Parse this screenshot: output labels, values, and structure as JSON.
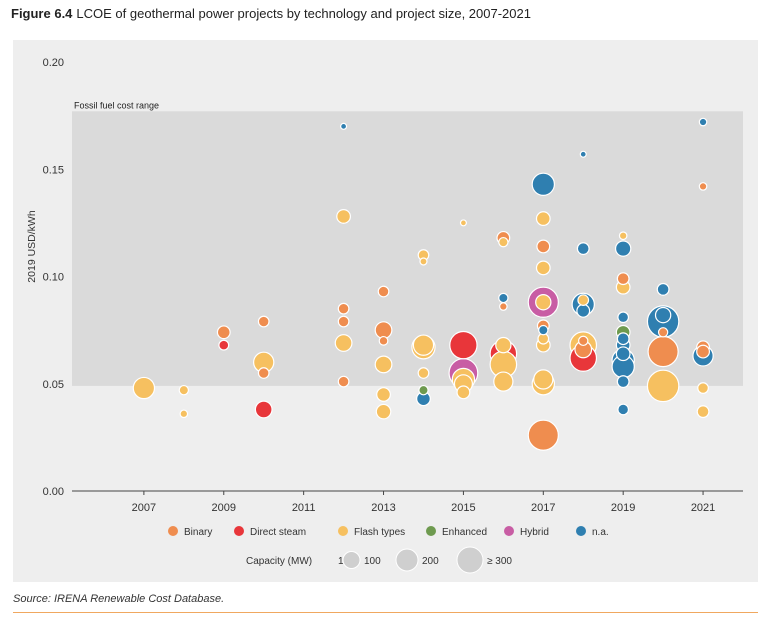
{
  "figure": {
    "label": "Figure 6.4",
    "title": "LCOE of geothermal power projects by technology and project size, 2007-2021",
    "source": "Source: IRENA Renewable Cost Database."
  },
  "colors": {
    "Binary": "#ef8d4f",
    "Direct steam": "#e8363a",
    "Flash types": "#f6c060",
    "Enhanced": "#6e9a4f",
    "Hybrid": "#c85da4",
    "n.a.": "#2f7fb0",
    "band": "#dadada",
    "panel": "#eeeeee"
  },
  "chart_data": {
    "type": "scatter",
    "title": "LCOE of geothermal power projects by technology and project size, 2007-2021",
    "xlabel": "",
    "ylabel": "2019 USD/kWh",
    "xlim": [
      2005.2,
      2022
    ],
    "ylim": [
      0,
      0.2
    ],
    "y_ticks": [
      "0.00",
      "0.05",
      "0.10",
      "0.15",
      "0.20"
    ],
    "x_ticks": [
      "2007",
      "2009",
      "2011",
      "2013",
      "2015",
      "2017",
      "2019",
      "2021"
    ],
    "band": {
      "label": "Fossil fuel cost range",
      "y0": 0.049,
      "y1": 0.177
    },
    "legend_technology": [
      "Binary",
      "Direct steam",
      "Flash types",
      "Enhanced",
      "Hybrid",
      "n.a."
    ],
    "legend_capacity": {
      "title": "Capacity (MW)",
      "items": [
        {
          "label": "1",
          "mw": 1
        },
        {
          "label": "100",
          "mw": 100
        },
        {
          "label": "200",
          "mw": 200
        },
        {
          "label": "≥ 300",
          "mw": 300
        }
      ]
    },
    "points": [
      {
        "x": 2007,
        "y": 0.048,
        "tech": "Flash types",
        "mw": 90
      },
      {
        "x": 2008,
        "y": 0.047,
        "tech": "Flash types",
        "mw": 10
      },
      {
        "x": 2008,
        "y": 0.036,
        "tech": "Flash types",
        "mw": 5
      },
      {
        "x": 2009,
        "y": 0.074,
        "tech": "Binary",
        "mw": 25
      },
      {
        "x": 2009,
        "y": 0.068,
        "tech": "Direct steam",
        "mw": 12
      },
      {
        "x": 2010,
        "y": 0.079,
        "tech": "Binary",
        "mw": 15
      },
      {
        "x": 2010,
        "y": 0.06,
        "tech": "Flash types",
        "mw": 80
      },
      {
        "x": 2010,
        "y": 0.055,
        "tech": "Binary",
        "mw": 15
      },
      {
        "x": 2010,
        "y": 0.038,
        "tech": "Direct steam",
        "mw": 50
      },
      {
        "x": 2012,
        "y": 0.17,
        "tech": "n.a.",
        "mw": 2
      },
      {
        "x": 2012,
        "y": 0.128,
        "tech": "Flash types",
        "mw": 30
      },
      {
        "x": 2012,
        "y": 0.085,
        "tech": "Binary",
        "mw": 15
      },
      {
        "x": 2012,
        "y": 0.079,
        "tech": "Binary",
        "mw": 15
      },
      {
        "x": 2012,
        "y": 0.069,
        "tech": "Flash types",
        "mw": 50
      },
      {
        "x": 2012,
        "y": 0.051,
        "tech": "Binary",
        "mw": 15
      },
      {
        "x": 2013,
        "y": 0.093,
        "tech": "Binary",
        "mw": 15
      },
      {
        "x": 2013,
        "y": 0.075,
        "tech": "Binary",
        "mw": 50
      },
      {
        "x": 2013,
        "y": 0.07,
        "tech": "Binary",
        "mw": 8
      },
      {
        "x": 2013,
        "y": 0.059,
        "tech": "Flash types",
        "mw": 50
      },
      {
        "x": 2013,
        "y": 0.045,
        "tech": "Flash types",
        "mw": 30
      },
      {
        "x": 2013,
        "y": 0.037,
        "tech": "Flash types",
        "mw": 35
      },
      {
        "x": 2014,
        "y": 0.11,
        "tech": "Flash types",
        "mw": 15
      },
      {
        "x": 2014,
        "y": 0.107,
        "tech": "Flash types",
        "mw": 4
      },
      {
        "x": 2014,
        "y": 0.067,
        "tech": "Flash types",
        "mw": 110
      },
      {
        "x": 2014,
        "y": 0.068,
        "tech": "Flash types",
        "mw": 80
      },
      {
        "x": 2014,
        "y": 0.055,
        "tech": "Flash types",
        "mw": 15
      },
      {
        "x": 2014,
        "y": 0.047,
        "tech": "Enhanced",
        "mw": 10
      },
      {
        "x": 2014,
        "y": 0.043,
        "tech": "n.a.",
        "mw": 30
      },
      {
        "x": 2015,
        "y": 0.125,
        "tech": "Flash types",
        "mw": 2
      },
      {
        "x": 2015,
        "y": 0.068,
        "tech": "Direct steam",
        "mw": 160
      },
      {
        "x": 2015,
        "y": 0.055,
        "tech": "Hybrid",
        "mw": 180
      },
      {
        "x": 2015,
        "y": 0.052,
        "tech": "Flash types",
        "mw": 100
      },
      {
        "x": 2015,
        "y": 0.05,
        "tech": "Flash types",
        "mw": 60
      },
      {
        "x": 2015,
        "y": 0.046,
        "tech": "Flash types",
        "mw": 25
      },
      {
        "x": 2016,
        "y": 0.118,
        "tech": "Binary",
        "mw": 25
      },
      {
        "x": 2016,
        "y": 0.116,
        "tech": "Flash types",
        "mw": 10
      },
      {
        "x": 2016,
        "y": 0.09,
        "tech": "n.a.",
        "mw": 10
      },
      {
        "x": 2016,
        "y": 0.086,
        "tech": "Binary",
        "mw": 5
      },
      {
        "x": 2016,
        "y": 0.068,
        "tech": "Flash types",
        "mw": 40
      },
      {
        "x": 2016,
        "y": 0.064,
        "tech": "Direct steam",
        "mw": 150
      },
      {
        "x": 2016,
        "y": 0.059,
        "tech": "Flash types",
        "mw": 150
      },
      {
        "x": 2016,
        "y": 0.051,
        "tech": "Flash types",
        "mw": 70
      },
      {
        "x": 2017,
        "y": 0.143,
        "tech": "n.a.",
        "mw": 100
      },
      {
        "x": 2017,
        "y": 0.127,
        "tech": "Flash types",
        "mw": 30
      },
      {
        "x": 2017,
        "y": 0.114,
        "tech": "Binary",
        "mw": 25
      },
      {
        "x": 2017,
        "y": 0.104,
        "tech": "Flash types",
        "mw": 30
      },
      {
        "x": 2017,
        "y": 0.088,
        "tech": "Hybrid",
        "mw": 200
      },
      {
        "x": 2017,
        "y": 0.088,
        "tech": "Flash types",
        "mw": 40
      },
      {
        "x": 2017,
        "y": 0.077,
        "tech": "Binary",
        "mw": 20
      },
      {
        "x": 2017,
        "y": 0.075,
        "tech": "n.a.",
        "mw": 10
      },
      {
        "x": 2017,
        "y": 0.071,
        "tech": "Flash types",
        "mw": 15
      },
      {
        "x": 2017,
        "y": 0.068,
        "tech": "Flash types",
        "mw": 30
      },
      {
        "x": 2017,
        "y": 0.052,
        "tech": "Flash types",
        "mw": 70
      },
      {
        "x": 2017,
        "y": 0.05,
        "tech": "Flash types",
        "mw": 100
      },
      {
        "x": 2017,
        "y": 0.026,
        "tech": "Binary",
        "mw": 200
      },
      {
        "x": 2018,
        "y": 0.157,
        "tech": "n.a.",
        "mw": 2
      },
      {
        "x": 2018,
        "y": 0.113,
        "tech": "n.a.",
        "mw": 20
      },
      {
        "x": 2018,
        "y": 0.089,
        "tech": "Flash types",
        "mw": 15
      },
      {
        "x": 2018,
        "y": 0.087,
        "tech": "n.a.",
        "mw": 100
      },
      {
        "x": 2018,
        "y": 0.084,
        "tech": "n.a.",
        "mw": 25
      },
      {
        "x": 2018,
        "y": 0.07,
        "tech": "Binary",
        "mw": 10
      },
      {
        "x": 2018,
        "y": 0.068,
        "tech": "Flash types",
        "mw": 150
      },
      {
        "x": 2018,
        "y": 0.066,
        "tech": "Binary",
        "mw": 50
      },
      {
        "x": 2018,
        "y": 0.062,
        "tech": "Direct steam",
        "mw": 150
      },
      {
        "x": 2019,
        "y": 0.119,
        "tech": "Flash types",
        "mw": 5
      },
      {
        "x": 2019,
        "y": 0.113,
        "tech": "n.a.",
        "mw": 40
      },
      {
        "x": 2019,
        "y": 0.099,
        "tech": "Binary",
        "mw": 20
      },
      {
        "x": 2019,
        "y": 0.095,
        "tech": "Flash types",
        "mw": 30
      },
      {
        "x": 2019,
        "y": 0.081,
        "tech": "n.a.",
        "mw": 15
      },
      {
        "x": 2019,
        "y": 0.074,
        "tech": "Enhanced",
        "mw": 30
      },
      {
        "x": 2019,
        "y": 0.071,
        "tech": "n.a.",
        "mw": 20
      },
      {
        "x": 2019,
        "y": 0.068,
        "tech": "n.a.",
        "mw": 30
      },
      {
        "x": 2019,
        "y": 0.064,
        "tech": "n.a.",
        "mw": 30
      },
      {
        "x": 2019,
        "y": 0.061,
        "tech": "n.a.",
        "mw": 100
      },
      {
        "x": 2019,
        "y": 0.058,
        "tech": "n.a.",
        "mw": 100
      },
      {
        "x": 2019,
        "y": 0.051,
        "tech": "n.a.",
        "mw": 20
      },
      {
        "x": 2019,
        "y": 0.038,
        "tech": "n.a.",
        "mw": 15
      },
      {
        "x": 2020,
        "y": 0.094,
        "tech": "n.a.",
        "mw": 20
      },
      {
        "x": 2020,
        "y": 0.082,
        "tech": "n.a.",
        "mw": 40
      },
      {
        "x": 2020,
        "y": 0.079,
        "tech": "n.a.",
        "mw": 220
      },
      {
        "x": 2020,
        "y": 0.074,
        "tech": "Binary",
        "mw": 10
      },
      {
        "x": 2020,
        "y": 0.065,
        "tech": "Binary",
        "mw": 200
      },
      {
        "x": 2020,
        "y": 0.049,
        "tech": "Flash types",
        "mw": 220
      },
      {
        "x": 2021,
        "y": 0.172,
        "tech": "n.a.",
        "mw": 5
      },
      {
        "x": 2021,
        "y": 0.142,
        "tech": "Binary",
        "mw": 5
      },
      {
        "x": 2021,
        "y": 0.067,
        "tech": "Binary",
        "mw": 25
      },
      {
        "x": 2021,
        "y": 0.065,
        "tech": "Binary",
        "mw": 25
      },
      {
        "x": 2021,
        "y": 0.063,
        "tech": "n.a.",
        "mw": 80
      },
      {
        "x": 2021,
        "y": 0.048,
        "tech": "Flash types",
        "mw": 15
      },
      {
        "x": 2021,
        "y": 0.037,
        "tech": "Flash types",
        "mw": 20
      }
    ]
  }
}
